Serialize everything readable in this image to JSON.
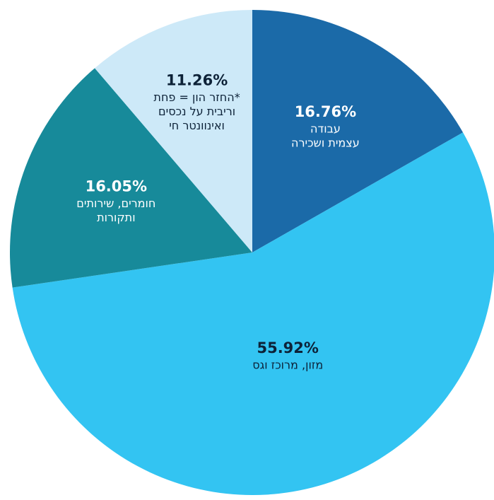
{
  "chart_data": {
    "type": "pie",
    "categories": [
      [
        "עבודה",
        "עצמית ושכירה"
      ],
      [
        "מזון, מרוכז וגס"
      ],
      [
        "חומרים, שירותים",
        "ותקורות"
      ],
      [
        "החזר הון = פחת*",
        "וריבית על נכסים",
        "ואינוונטר חי"
      ]
    ],
    "values": [
      16.76,
      55.92,
      16.05,
      11.26
    ],
    "value_labels": [
      "16.76%",
      "55.92%",
      "16.05%",
      "11.26%"
    ],
    "colors": [
      "#1b6aa8",
      "#33c4f2",
      "#178a9a",
      "#cde9f8"
    ]
  }
}
